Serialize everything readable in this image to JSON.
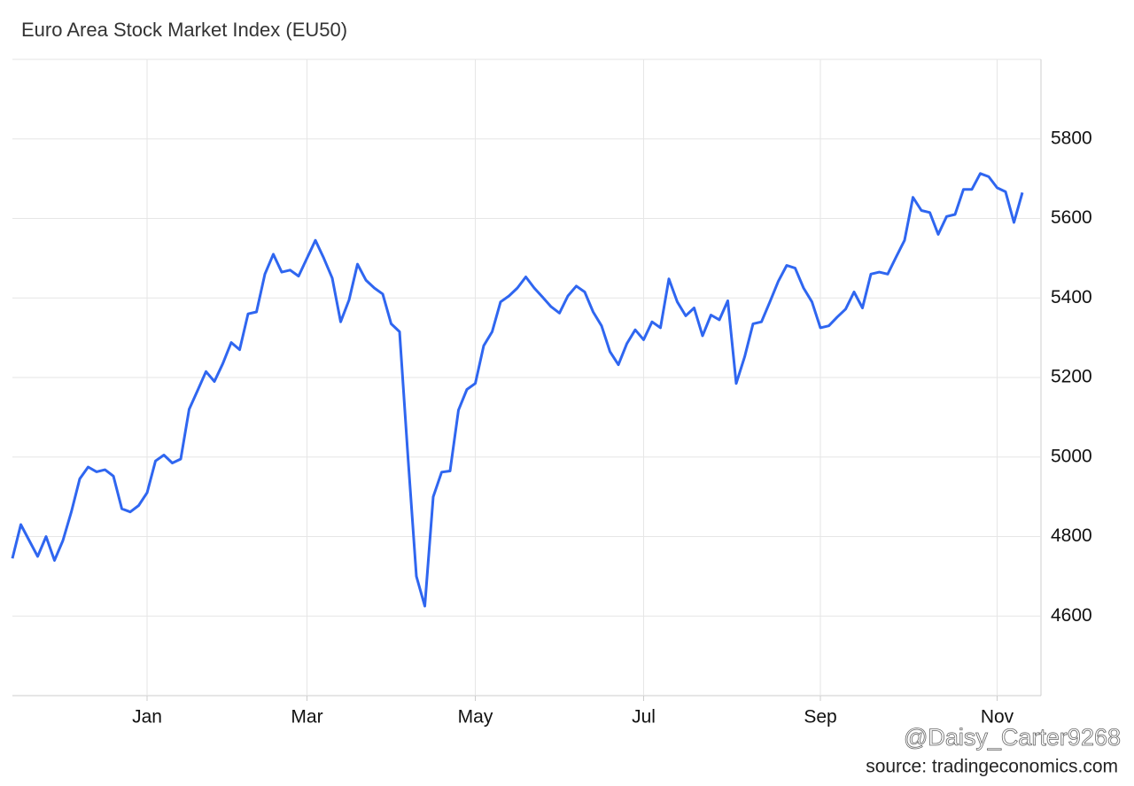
{
  "chart_data": {
    "type": "line",
    "title": "Euro Area Stock Market Index (EU50)",
    "categories": [
      null,
      null,
      null,
      null,
      null,
      null,
      null,
      null,
      null,
      null,
      null,
      null,
      null,
      null,
      null,
      null,
      "Jan",
      null,
      null,
      null,
      null,
      null,
      null,
      null,
      null,
      null,
      null,
      null,
      null,
      null,
      null,
      null,
      null,
      null,
      null,
      "Mar",
      null,
      null,
      null,
      null,
      null,
      null,
      null,
      null,
      null,
      null,
      null,
      null,
      null,
      null,
      null,
      null,
      null,
      null,
      null,
      "May",
      null,
      null,
      null,
      null,
      null,
      null,
      null,
      null,
      null,
      null,
      null,
      null,
      null,
      null,
      null,
      null,
      null,
      null,
      null,
      "Jul",
      null,
      null,
      null,
      null,
      null,
      null,
      null,
      null,
      null,
      null,
      null,
      null,
      null,
      null,
      null,
      null,
      null,
      null,
      null,
      null,
      "Sep",
      null,
      null,
      null,
      null,
      null,
      null,
      null,
      null,
      null,
      null,
      null,
      null,
      null,
      null,
      null,
      null,
      null,
      null,
      null,
      null,
      "Nov",
      null,
      null,
      null
    ],
    "values": [
      4745,
      4830,
      4790,
      4750,
      4800,
      4740,
      4790,
      4862,
      4945,
      4975,
      4963,
      4968,
      4952,
      4870,
      4862,
      4878,
      4910,
      4990,
      5005,
      4985,
      4995,
      5120,
      5167,
      5215,
      5190,
      5235,
      5288,
      5270,
      5360,
      5365,
      5460,
      5510,
      5465,
      5470,
      5455,
      5500,
      5545,
      5500,
      5450,
      5340,
      5395,
      5485,
      5445,
      5425,
      5410,
      5335,
      5315,
      5000,
      4700,
      4625,
      4900,
      4962,
      4965,
      5118,
      5170,
      5185,
      5280,
      5315,
      5390,
      5405,
      5425,
      5453,
      5425,
      5402,
      5378,
      5362,
      5405,
      5430,
      5415,
      5365,
      5330,
      5265,
      5232,
      5285,
      5320,
      5295,
      5340,
      5325,
      5448,
      5390,
      5355,
      5375,
      5305,
      5357,
      5345,
      5393,
      5185,
      5252,
      5335,
      5340,
      5390,
      5442,
      5482,
      5475,
      5425,
      5390,
      5325,
      5330,
      5352,
      5372,
      5415,
      5375,
      5460,
      5465,
      5460,
      5503,
      5545,
      5653,
      5620,
      5615,
      5560,
      5605,
      5610,
      5673,
      5673,
      5713,
      5705,
      5677,
      5667,
      5590,
      5665
    ],
    "color": "#2f66f0",
    "ylim": [
      4400,
      6000
    ],
    "yticks": [
      4600,
      4800,
      5000,
      5200,
      5400,
      5600,
      5800
    ],
    "grid": true,
    "watermark": "@Daisy_Carter9268",
    "source": "source: tradingeconomics.com"
  }
}
